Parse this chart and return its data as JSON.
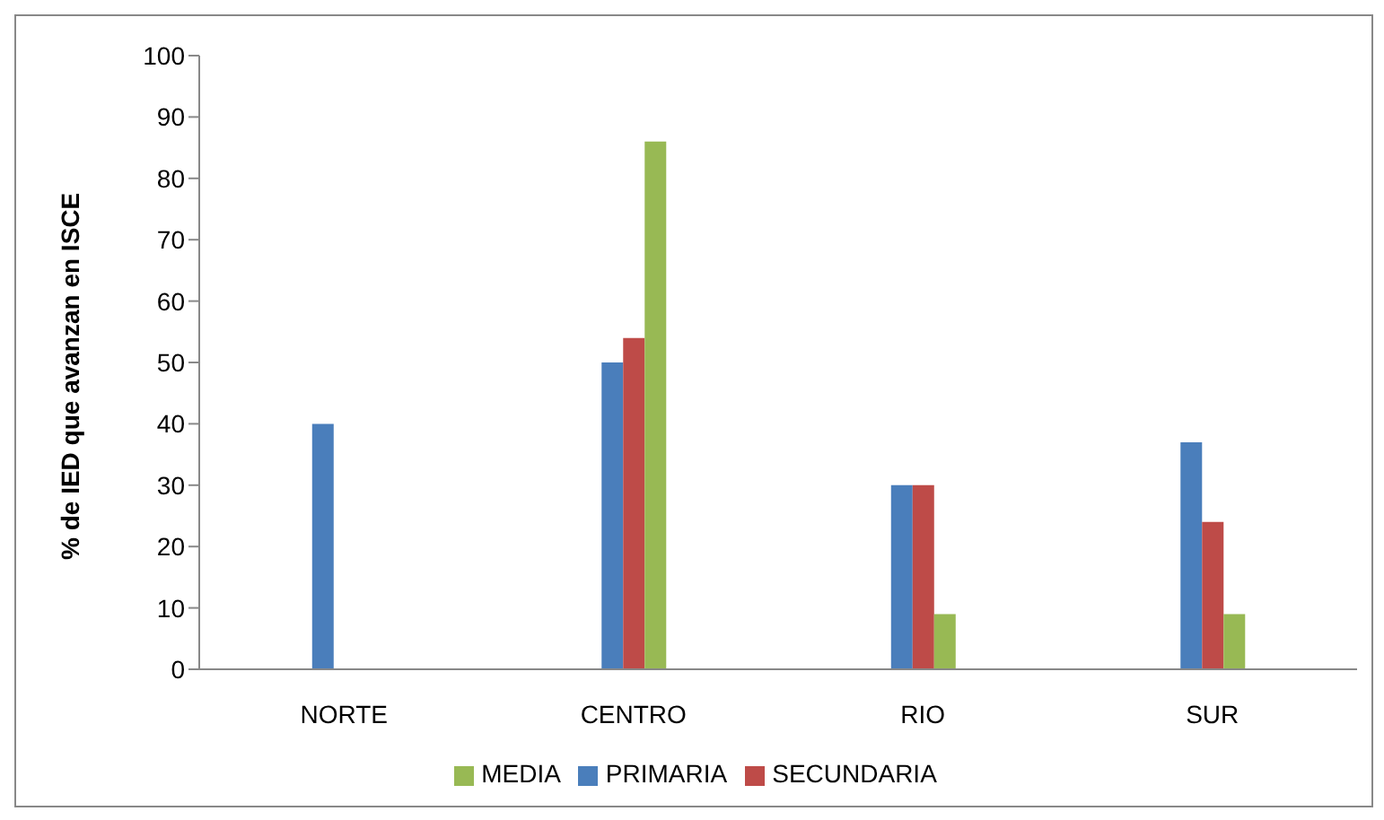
{
  "chart_data": {
    "type": "bar",
    "ylabel": "% de IED que avanzan en ISCE",
    "categories": [
      "NORTE",
      "CENTRO",
      "RIO",
      "SUR"
    ],
    "series": [
      {
        "name": "PRIMARIA",
        "color": "#4a7ebb",
        "values": [
          40,
          50,
          30,
          37
        ]
      },
      {
        "name": "SECUNDARIA",
        "color": "#be4b48",
        "values": [
          null,
          54,
          30,
          24
        ]
      },
      {
        "name": "MEDIA",
        "color": "#98b954",
        "values": [
          null,
          86,
          9,
          9
        ]
      }
    ],
    "ylim": [
      0,
      100
    ],
    "yticks": [
      0,
      10,
      20,
      30,
      40,
      50,
      60,
      70,
      80,
      90,
      100
    ],
    "grid": false,
    "legend": "bottom"
  }
}
